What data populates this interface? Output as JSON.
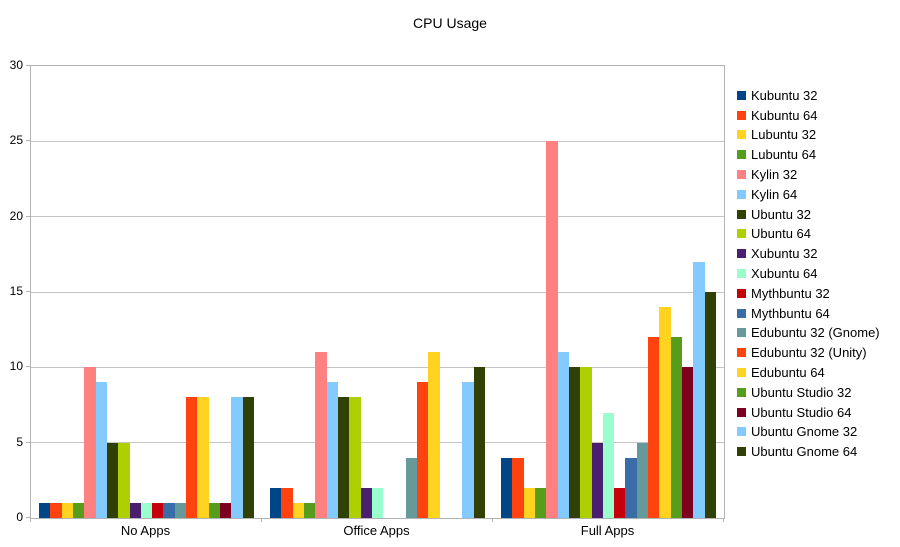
{
  "chart_data": {
    "type": "bar",
    "title": "CPU Usage",
    "categories": [
      "No Apps",
      "Office Apps",
      "Full Apps"
    ],
    "series": [
      {
        "name": "Kubuntu 32",
        "color": "#004586",
        "values": [
          1,
          2,
          4
        ]
      },
      {
        "name": "Kubuntu 64",
        "color": "#ff420e",
        "values": [
          1,
          2,
          4
        ]
      },
      {
        "name": "Lubuntu 32",
        "color": "#ffd320",
        "values": [
          1,
          1,
          2
        ]
      },
      {
        "name": "Lubuntu 64",
        "color": "#579d1c",
        "values": [
          1,
          1,
          2
        ]
      },
      {
        "name": "Kylin 32",
        "color": "#ff8080",
        "values": [
          10,
          11,
          25
        ]
      },
      {
        "name": "Kylin 64",
        "color": "#83caff",
        "values": [
          9,
          9,
          11
        ]
      },
      {
        "name": "Ubuntu 32",
        "color": "#314004",
        "values": [
          5,
          8,
          10
        ]
      },
      {
        "name": "Ubuntu 64",
        "color": "#aecf00",
        "values": [
          5,
          8,
          10
        ]
      },
      {
        "name": "Xubuntu 32",
        "color": "#4b1f6f",
        "values": [
          1,
          2,
          5
        ]
      },
      {
        "name": "Xubuntu 64",
        "color": "#99ffcc",
        "values": [
          1,
          2,
          7
        ]
      },
      {
        "name": "Mythbuntu 32",
        "color": "#c5000b",
        "values": [
          1,
          0,
          2
        ]
      },
      {
        "name": "Mythbuntu 64",
        "color": "#3a6ca8",
        "values": [
          1,
          0,
          4
        ]
      },
      {
        "name": "Edubuntu 32 (Gnome)",
        "color": "#669999",
        "values": [
          1,
          4,
          5
        ]
      },
      {
        "name": "Edubuntu 32 (Unity)",
        "color": "#ff420e",
        "values": [
          8,
          9,
          12
        ]
      },
      {
        "name": "Edubuntu 64",
        "color": "#ffd320",
        "values": [
          8,
          11,
          14
        ]
      },
      {
        "name": "Ubuntu Studio 32",
        "color": "#579d1c",
        "values": [
          1,
          0,
          12
        ]
      },
      {
        "name": "Ubuntu Studio 64",
        "color": "#7e0021",
        "values": [
          1,
          0,
          10
        ]
      },
      {
        "name": "Ubuntu Gnome 32",
        "color": "#83caff",
        "values": [
          8,
          9,
          17
        ]
      },
      {
        "name": "Ubuntu Gnome 64",
        "color": "#314004",
        "values": [
          8,
          10,
          15
        ]
      }
    ],
    "ylim": [
      0,
      30
    ],
    "yticks": [
      0,
      5,
      10,
      15,
      20,
      25,
      30
    ],
    "grid": true,
    "legend_position": "right"
  }
}
